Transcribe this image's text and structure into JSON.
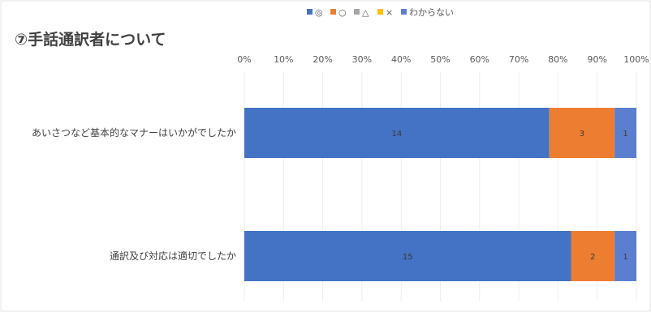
{
  "chart_data": {
    "type": "bar",
    "orientation": "horizontal",
    "stacking": "percent",
    "title": "⑦手話通訳者について",
    "categories": [
      "あいさつなど基本的なマナーはいかがでしたか",
      "通訳及び対応は適切でしたか"
    ],
    "series": [
      {
        "name": "◎",
        "color": "#4472C4",
        "values": [
          14,
          15
        ]
      },
      {
        "name": "○",
        "color": "#ED7D31",
        "values": [
          3,
          2
        ]
      },
      {
        "name": "△",
        "color": "#A5A5A5",
        "values": [
          0,
          0
        ]
      },
      {
        "name": "×",
        "color": "#FFC000",
        "values": [
          0,
          0
        ]
      },
      {
        "name": "わからない",
        "color": "#5B7FCE",
        "values": [
          1,
          1
        ]
      }
    ],
    "x_ticks": [
      "0%",
      "10%",
      "20%",
      "30%",
      "40%",
      "50%",
      "60%",
      "70%",
      "80%",
      "90%",
      "100%"
    ],
    "xlim": [
      0,
      100
    ],
    "grid": true,
    "legend_position": "top"
  }
}
